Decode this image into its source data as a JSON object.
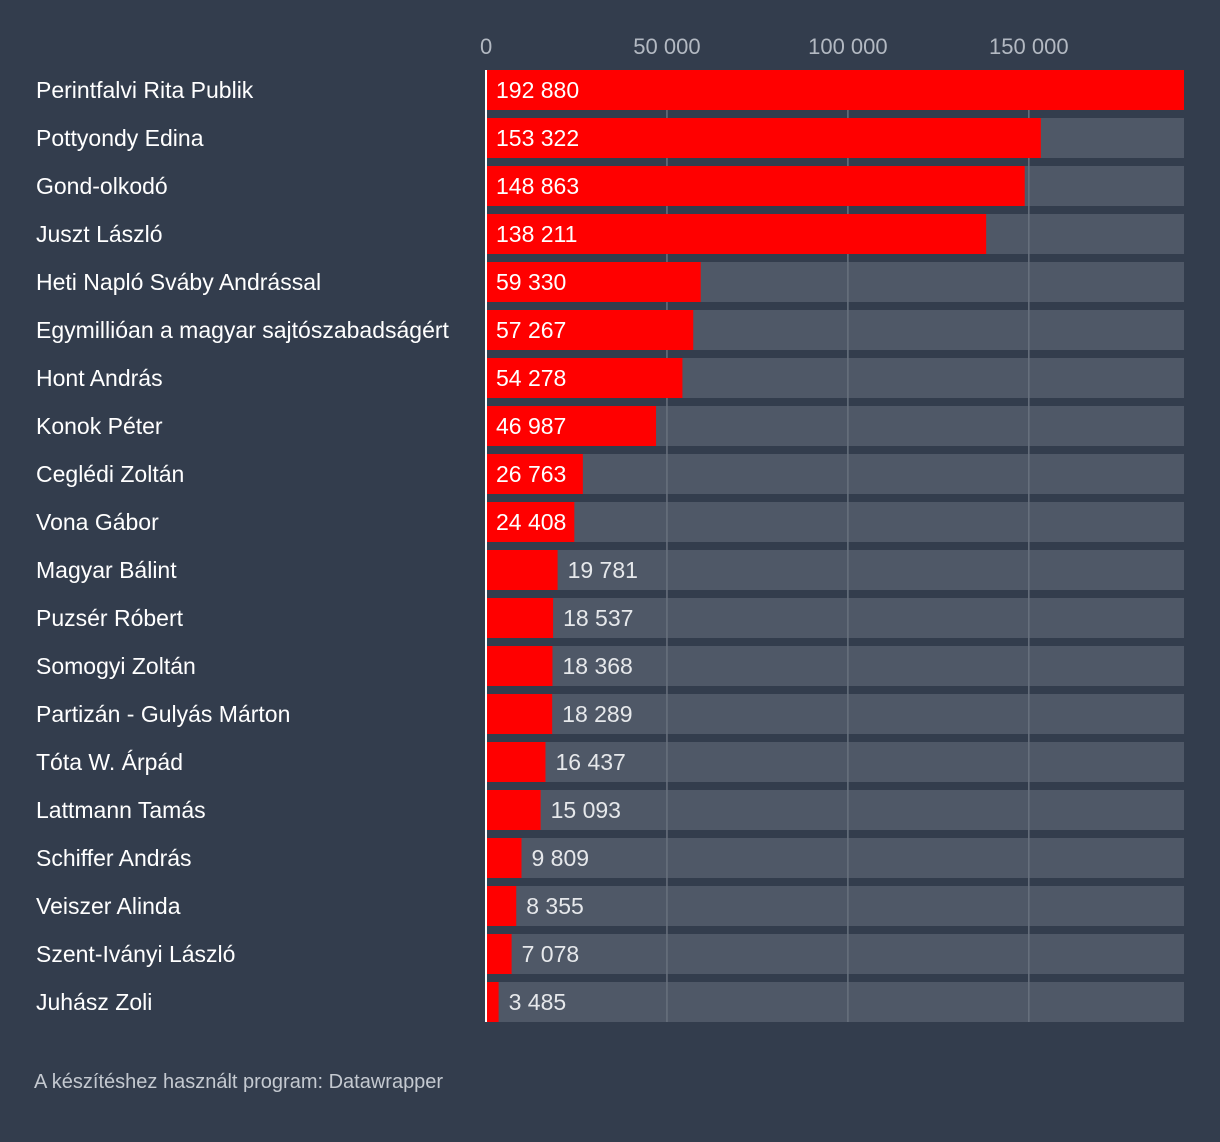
{
  "chart_data": {
    "type": "bar",
    "orientation": "horizontal",
    "categories": [
      "Perintfalvi Rita Publik",
      "Pottyondy Edina",
      "Gond-olkodó",
      "Juszt László",
      "Heti Napló Sváby Andrással",
      "Egymillióan a magyar sajtószabadságért",
      "Hont András",
      "Konok Péter",
      "Ceglédi Zoltán",
      "Vona Gábor",
      "Magyar Bálint",
      "Puzsér Róbert",
      "Somogyi Zoltán",
      "Partizán - Gulyás Márton",
      "Tóta W. Árpád",
      "Lattmann Tamás",
      "Schiffer András",
      "Veiszer Alinda",
      "Szent-Iványi László",
      "Juhász Zoli"
    ],
    "values": [
      192880,
      153322,
      148863,
      138211,
      59330,
      57267,
      54278,
      46987,
      26763,
      24408,
      19781,
      18537,
      18368,
      18289,
      16437,
      15093,
      9809,
      8355,
      7078,
      3485
    ],
    "value_labels": [
      "192 880",
      "153 322",
      "148 863",
      "138 211",
      "59 330",
      "57 267",
      "54 278",
      "46 987",
      "26 763",
      "24 408",
      "19 781",
      "18 537",
      "18 368",
      "18 289",
      "16 437",
      "15 093",
      "9 809",
      "8 355",
      "7 078",
      "3 485"
    ],
    "ticks": [
      0,
      50000,
      100000,
      150000
    ],
    "tick_labels": [
      "0",
      "50 000",
      "100 000",
      "150 000"
    ],
    "xlim": [
      0,
      192880
    ],
    "grid": true,
    "title": "",
    "xlabel": "",
    "ylabel": ""
  },
  "colors": {
    "background": "#333d4d",
    "bar": "#ff0000",
    "track": "#4f5867",
    "gridline": "#68717e",
    "axis": "#ffffff"
  },
  "footer": {
    "credit": "A készítéshez használt program: Datawrapper"
  }
}
